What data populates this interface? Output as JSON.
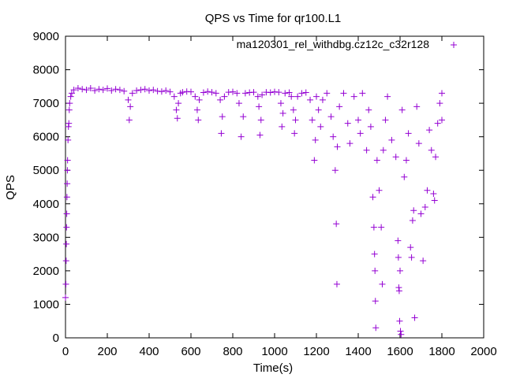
{
  "chart_data": {
    "type": "scatter",
    "title": "QPS vs Time for qr100.L1",
    "xlabel": "Time(s)",
    "ylabel": "QPS",
    "xlim": [
      0,
      2000
    ],
    "ylim": [
      0,
      9000
    ],
    "xticks": [
      "0",
      "200",
      "400",
      "600",
      "800",
      "1000",
      "1200",
      "1400",
      "1600",
      "1800",
      "2000"
    ],
    "yticks": [
      "0",
      "1000",
      "2000",
      "3000",
      "4000",
      "5000",
      "6000",
      "7000",
      "8000",
      "9000"
    ],
    "grid": false,
    "legend_position": "top-right",
    "series": [
      {
        "name": "ma120301_rel_withdbg.cz12c_c32r128",
        "color": "#9400d3",
        "marker": "plus",
        "points": [
          [
            0,
            1200
          ],
          [
            2,
            1600
          ],
          [
            3,
            2300
          ],
          [
            4,
            2800
          ],
          [
            5,
            3300
          ],
          [
            6,
            3700
          ],
          [
            7,
            4200
          ],
          [
            8,
            4600
          ],
          [
            9,
            5000
          ],
          [
            10,
            5300
          ],
          [
            12,
            5900
          ],
          [
            14,
            6300
          ],
          [
            16,
            6400
          ],
          [
            18,
            6800
          ],
          [
            20,
            7000
          ],
          [
            25,
            7200
          ],
          [
            30,
            7300
          ],
          [
            40,
            7400
          ],
          [
            60,
            7450
          ],
          [
            80,
            7420
          ],
          [
            100,
            7400
          ],
          [
            120,
            7450
          ],
          [
            140,
            7380
          ],
          [
            160,
            7420
          ],
          [
            180,
            7400
          ],
          [
            200,
            7440
          ],
          [
            220,
            7380
          ],
          [
            240,
            7420
          ],
          [
            260,
            7400
          ],
          [
            280,
            7360
          ],
          [
            300,
            7100
          ],
          [
            305,
            6500
          ],
          [
            310,
            6900
          ],
          [
            320,
            7300
          ],
          [
            340,
            7380
          ],
          [
            360,
            7400
          ],
          [
            380,
            7420
          ],
          [
            400,
            7380
          ],
          [
            420,
            7400
          ],
          [
            440,
            7360
          ],
          [
            460,
            7350
          ],
          [
            480,
            7380
          ],
          [
            500,
            7340
          ],
          [
            520,
            7200
          ],
          [
            530,
            6800
          ],
          [
            535,
            6550
          ],
          [
            540,
            7000
          ],
          [
            550,
            7300
          ],
          [
            560,
            7330
          ],
          [
            580,
            7350
          ],
          [
            600,
            7340
          ],
          [
            620,
            7200
          ],
          [
            630,
            6800
          ],
          [
            635,
            6500
          ],
          [
            640,
            7100
          ],
          [
            660,
            7320
          ],
          [
            680,
            7350
          ],
          [
            700,
            7330
          ],
          [
            720,
            7300
          ],
          [
            740,
            7100
          ],
          [
            745,
            6100
          ],
          [
            750,
            6600
          ],
          [
            760,
            7200
          ],
          [
            780,
            7330
          ],
          [
            800,
            7340
          ],
          [
            820,
            7300
          ],
          [
            830,
            7000
          ],
          [
            840,
            6000
          ],
          [
            850,
            6600
          ],
          [
            860,
            7300
          ],
          [
            880,
            7320
          ],
          [
            900,
            7330
          ],
          [
            920,
            7200
          ],
          [
            925,
            6900
          ],
          [
            930,
            6050
          ],
          [
            935,
            6500
          ],
          [
            940,
            7250
          ],
          [
            960,
            7330
          ],
          [
            980,
            7320
          ],
          [
            1000,
            7340
          ],
          [
            1020,
            7330
          ],
          [
            1030,
            7000
          ],
          [
            1035,
            6300
          ],
          [
            1040,
            6700
          ],
          [
            1050,
            7300
          ],
          [
            1070,
            7320
          ],
          [
            1080,
            7200
          ],
          [
            1090,
            6800
          ],
          [
            1095,
            6100
          ],
          [
            1100,
            6500
          ],
          [
            1110,
            7200
          ],
          [
            1130,
            7300
          ],
          [
            1150,
            7320
          ],
          [
            1170,
            7100
          ],
          [
            1180,
            6500
          ],
          [
            1190,
            5300
          ],
          [
            1195,
            5900
          ],
          [
            1200,
            7200
          ],
          [
            1210,
            6800
          ],
          [
            1220,
            6300
          ],
          [
            1230,
            7100
          ],
          [
            1250,
            7300
          ],
          [
            1270,
            6600
          ],
          [
            1280,
            6000
          ],
          [
            1290,
            5000
          ],
          [
            1295,
            3400
          ],
          [
            1298,
            1600
          ],
          [
            1300,
            5700
          ],
          [
            1310,
            6900
          ],
          [
            1330,
            7300
          ],
          [
            1350,
            6400
          ],
          [
            1360,
            5800
          ],
          [
            1380,
            7200
          ],
          [
            1400,
            6500
          ],
          [
            1410,
            6100
          ],
          [
            1420,
            7300
          ],
          [
            1440,
            5600
          ],
          [
            1450,
            6800
          ],
          [
            1460,
            6300
          ],
          [
            1470,
            4200
          ],
          [
            1475,
            3300
          ],
          [
            1478,
            2500
          ],
          [
            1480,
            2000
          ],
          [
            1482,
            1100
          ],
          [
            1484,
            300
          ],
          [
            1490,
            5300
          ],
          [
            1500,
            4400
          ],
          [
            1510,
            3300
          ],
          [
            1515,
            1600
          ],
          [
            1520,
            5600
          ],
          [
            1530,
            6500
          ],
          [
            1540,
            7200
          ],
          [
            1560,
            5900
          ],
          [
            1580,
            5400
          ],
          [
            1590,
            2900
          ],
          [
            1592,
            2400
          ],
          [
            1594,
            1500
          ],
          [
            1596,
            1400
          ],
          [
            1598,
            500
          ],
          [
            1600,
            2000
          ],
          [
            1602,
            200
          ],
          [
            1605,
            100
          ],
          [
            1610,
            6800
          ],
          [
            1620,
            4800
          ],
          [
            1630,
            5300
          ],
          [
            1640,
            6100
          ],
          [
            1650,
            2700
          ],
          [
            1655,
            2400
          ],
          [
            1660,
            3500
          ],
          [
            1665,
            3800
          ],
          [
            1670,
            600
          ],
          [
            1680,
            6900
          ],
          [
            1690,
            5800
          ],
          [
            1700,
            3700
          ],
          [
            1710,
            2300
          ],
          [
            1720,
            3900
          ],
          [
            1730,
            4400
          ],
          [
            1740,
            6200
          ],
          [
            1750,
            5600
          ],
          [
            1760,
            4300
          ],
          [
            1765,
            4100
          ],
          [
            1770,
            5400
          ],
          [
            1780,
            6400
          ],
          [
            1790,
            7000
          ],
          [
            1800,
            6500
          ],
          [
            1800,
            7300
          ]
        ]
      }
    ]
  }
}
